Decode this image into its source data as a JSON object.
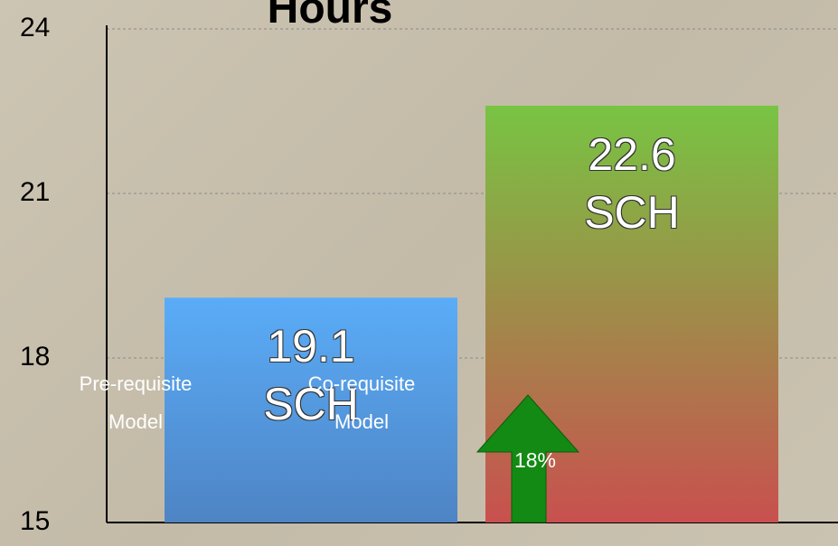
{
  "chart_data": {
    "type": "bar",
    "title": "Hours",
    "categories": [
      "Pre-requisite Model",
      "Co-requisite Model"
    ],
    "values": [
      19.1,
      22.6
    ],
    "value_labels": [
      "19.1 SCH",
      "22.6 SCH"
    ],
    "colors": [
      [
        "#5aacf8",
        "#4e84c4"
      ],
      [
        "#78c443",
        "#c9504f"
      ]
    ],
    "ylim": [
      15,
      24
    ],
    "yticks": [
      15,
      18,
      21,
      24
    ],
    "grid": true,
    "annotation": "18%"
  }
}
